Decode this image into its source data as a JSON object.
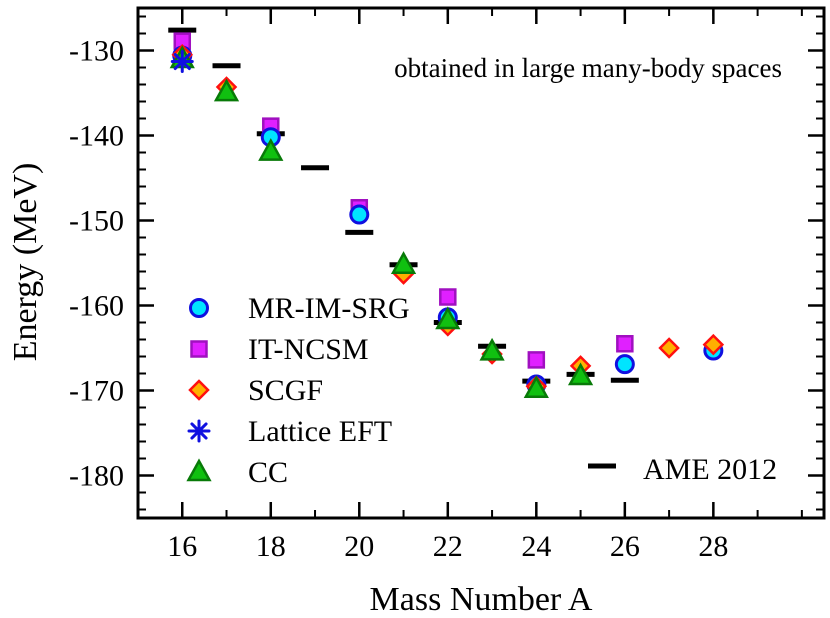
{
  "chart_data": {
    "type": "scatter",
    "title": "",
    "annotation": "obtained in large many-body spaces",
    "xlabel": "Mass Number A",
    "ylabel": "Energy (MeV)",
    "xlim": [
      15,
      30.5
    ],
    "ylim": [
      -185,
      -125
    ],
    "xticks": [
      16,
      18,
      20,
      22,
      24,
      26,
      28
    ],
    "yticks": [
      -180,
      -170,
      -160,
      -150,
      -140,
      -130
    ],
    "x_minor_step": 1,
    "y_minor_step": 2,
    "legend_position": "left-bottom",
    "series": [
      {
        "name": "MR-IM-SRG",
        "marker": "circle",
        "fill": "#00e5ff",
        "stroke": "#1010e0",
        "points": [
          [
            16,
            -130.6
          ],
          [
            18,
            -140.2
          ],
          [
            20,
            -149.3
          ],
          [
            22,
            -161.4
          ],
          [
            24,
            -169.3
          ],
          [
            26,
            -166.9
          ],
          [
            28,
            -165.3
          ]
        ]
      },
      {
        "name": "IT-NCSM",
        "marker": "square",
        "fill": "#e020ff",
        "stroke": "#a010c0",
        "points": [
          [
            16,
            -128.9
          ],
          [
            18,
            -138.9
          ],
          [
            20,
            -148.5
          ],
          [
            22,
            -159.0
          ],
          [
            24,
            -166.4
          ],
          [
            26,
            -164.5
          ]
        ]
      },
      {
        "name": "SCGF",
        "marker": "diamond",
        "fill": "#ffb000",
        "stroke": "#ff1010",
        "points": [
          [
            16,
            -130.5
          ],
          [
            17,
            -134.3
          ],
          [
            21,
            -156.3
          ],
          [
            22,
            -162.4
          ],
          [
            23,
            -165.7
          ],
          [
            24,
            -169.5
          ],
          [
            25,
            -167.1
          ],
          [
            27,
            -165.0
          ],
          [
            28,
            -164.6
          ]
        ]
      },
      {
        "name": "Lattice EFT",
        "marker": "asterisk",
        "fill": "none",
        "stroke": "#1010e0",
        "points": [
          [
            16,
            -131.3
          ]
        ]
      },
      {
        "name": "CC",
        "marker": "triangle",
        "fill": "#10c010",
        "stroke": "#087a08",
        "points": [
          [
            16,
            -131.0
          ],
          [
            17,
            -134.9
          ],
          [
            18,
            -141.9
          ],
          [
            21,
            -155.2
          ],
          [
            22,
            -161.7
          ],
          [
            23,
            -165.4
          ],
          [
            24,
            -169.8
          ],
          [
            25,
            -168.3
          ]
        ]
      },
      {
        "name": "AME 2012",
        "marker": "dash",
        "fill": "none",
        "stroke": "#000000",
        "points": [
          [
            16,
            -127.6
          ],
          [
            17,
            -131.8
          ],
          [
            18,
            -139.8
          ],
          [
            19,
            -143.8
          ],
          [
            20,
            -151.4
          ],
          [
            21,
            -155.2
          ],
          [
            22,
            -162.0
          ],
          [
            23,
            -164.8
          ],
          [
            24,
            -168.9
          ],
          [
            25,
            -168.1
          ],
          [
            26,
            -168.8
          ]
        ]
      }
    ]
  }
}
